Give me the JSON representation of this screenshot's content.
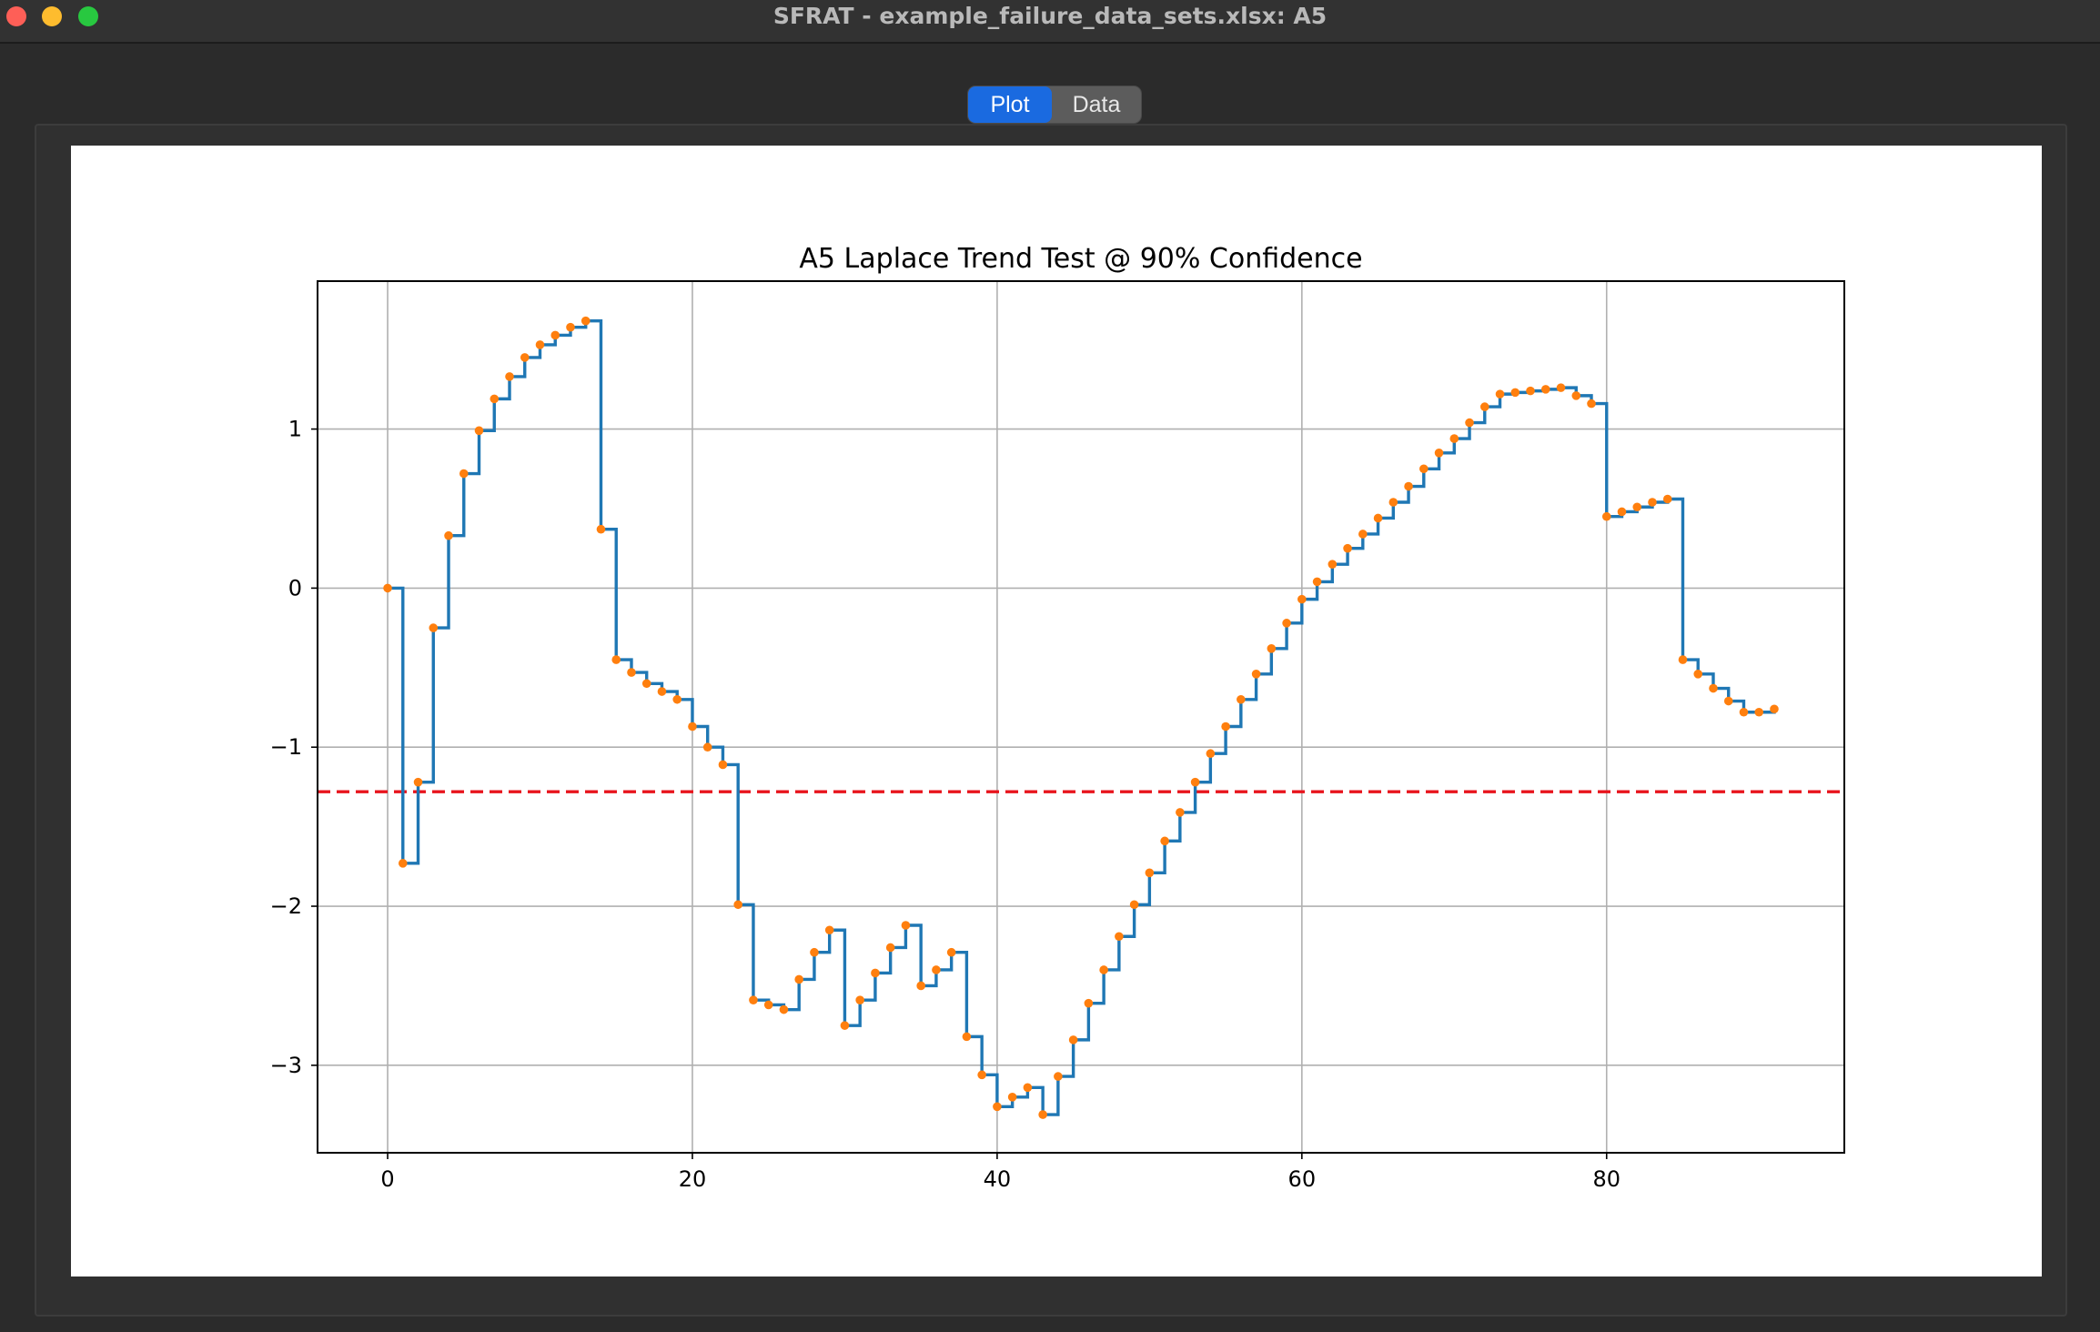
{
  "window": {
    "title": "SFRAT - example_failure_data_sets.xlsx: A5"
  },
  "tabs": [
    {
      "label": "Plot",
      "selected": true
    },
    {
      "label": "Data",
      "selected": false
    }
  ],
  "colors": {
    "series_line": "#1f77b4",
    "series_points": "#ff7f0e",
    "threshold_line": "#e8141c",
    "selected_tab": "#1a6ae0"
  },
  "chart_data": {
    "type": "line",
    "step": "post",
    "title": "A5 Laplace Trend Test @ 90% Confidence",
    "xlabel": "",
    "ylabel": "",
    "xlim": [
      -4.6,
      95.6
    ],
    "ylim": [
      -3.55,
      1.93
    ],
    "xticks": [
      0,
      20,
      40,
      60,
      80
    ],
    "yticks": [
      -3,
      -2,
      -1,
      0,
      1
    ],
    "ytick_labels": [
      "−3",
      "−2",
      "−1",
      "0",
      "1"
    ],
    "grid": true,
    "legend": "none",
    "threshold": -1.28,
    "x": [
      0,
      1,
      2,
      3,
      4,
      5,
      6,
      7,
      8,
      9,
      10,
      11,
      12,
      13,
      14,
      15,
      16,
      17,
      18,
      19,
      20,
      21,
      22,
      23,
      24,
      25,
      26,
      27,
      28,
      29,
      30,
      31,
      32,
      33,
      34,
      35,
      36,
      37,
      38,
      39,
      40,
      41,
      42,
      43,
      44,
      45,
      46,
      47,
      48,
      49,
      50,
      51,
      52,
      53,
      54,
      55,
      56,
      57,
      58,
      59,
      60,
      61,
      62,
      63,
      64,
      65,
      66,
      67,
      68,
      69,
      70,
      71,
      72,
      73,
      74,
      75,
      76,
      77,
      78,
      79,
      80,
      81,
      82,
      83,
      84,
      85,
      86,
      87,
      88,
      89,
      90,
      91
    ],
    "values": [
      0,
      -1.73,
      -1.22,
      -0.25,
      0.33,
      0.72,
      0.99,
      1.19,
      1.33,
      1.45,
      1.53,
      1.59,
      1.64,
      1.68,
      0.37,
      -0.45,
      -0.53,
      -0.6,
      -0.65,
      -0.7,
      -0.87,
      -1.0,
      -1.11,
      -1.99,
      -2.59,
      -2.62,
      -2.65,
      -2.46,
      -2.29,
      -2.15,
      -2.75,
      -2.59,
      -2.42,
      -2.26,
      -2.12,
      -2.5,
      -2.4,
      -2.29,
      -2.82,
      -3.06,
      -3.26,
      -3.2,
      -3.14,
      -3.31,
      -3.07,
      -2.84,
      -2.61,
      -2.4,
      -2.19,
      -1.99,
      -1.79,
      -1.59,
      -1.41,
      -1.22,
      -1.04,
      -0.87,
      -0.7,
      -0.54,
      -0.38,
      -0.22,
      -0.07,
      0.04,
      0.15,
      0.25,
      0.34,
      0.44,
      0.54,
      0.64,
      0.75,
      0.85,
      0.94,
      1.04,
      1.14,
      1.22,
      1.23,
      1.24,
      1.25,
      1.26,
      1.21,
      1.16,
      0.45,
      0.48,
      0.51,
      0.54,
      0.56,
      -0.45,
      -0.54,
      -0.63,
      -0.71,
      -0.78,
      -0.78,
      -0.76
    ]
  }
}
